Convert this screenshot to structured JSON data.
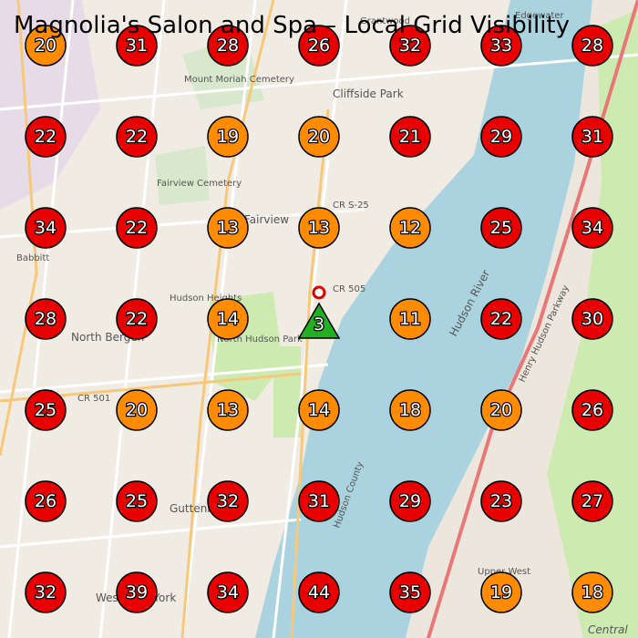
{
  "title": "Magnolia's Salon and Spa – Local Grid Visibility",
  "grid": {
    "rows": [
      [
        20,
        31,
        28,
        26,
        32,
        33,
        28
      ],
      [
        22,
        22,
        19,
        20,
        21,
        29,
        31
      ],
      [
        34,
        22,
        13,
        13,
        12,
        25,
        34
      ],
      [
        28,
        22,
        14,
        3,
        11,
        22,
        30
      ],
      [
        25,
        20,
        13,
        14,
        18,
        20,
        26
      ],
      [
        26,
        25,
        32,
        31,
        29,
        23,
        27
      ],
      [
        32,
        39,
        34,
        44,
        35,
        19,
        18
      ]
    ],
    "colors": [
      [
        "#ff8c00",
        "#e60000",
        "#e60000",
        "#e60000",
        "#e60000",
        "#e60000",
        "#e60000"
      ],
      [
        "#e60000",
        "#e60000",
        "#ff8c00",
        "#ff8c00",
        "#e60000",
        "#e60000",
        "#e60000"
      ],
      [
        "#e60000",
        "#e60000",
        "#ff8c00",
        "#ff8c00",
        "#ff8c00",
        "#e60000",
        "#e60000"
      ],
      [
        "#e60000",
        "#e60000",
        "#ff8c00",
        "#22b022",
        "#ff8c00",
        "#e60000",
        "#e60000"
      ],
      [
        "#e60000",
        "#ff8c00",
        "#ff8c00",
        "#ff8c00",
        "#ff8c00",
        "#ff8c00",
        "#e60000"
      ],
      [
        "#e60000",
        "#e60000",
        "#e60000",
        "#e60000",
        "#e60000",
        "#e60000",
        "#e60000"
      ],
      [
        "#e60000",
        "#e60000",
        "#e60000",
        "#e60000",
        "#e60000",
        "#ff8c00",
        "#ff8c00"
      ]
    ]
  },
  "map_labels": [
    "Cliffside Park",
    "North Bergen",
    "Fairview",
    "Hudson Heights",
    "North Hudson Park",
    "Guttenberg",
    "West New York",
    "Mount Moriah Cemetery",
    "Fairview Cemetery",
    "CR 505",
    "CR S-25",
    "CR 501",
    "Hudson River",
    "Edgewater",
    "Grantwood",
    "Babbitt",
    "Upper West",
    "Henry Hudson Parkway",
    "Hudson County",
    "Central"
  ]
}
